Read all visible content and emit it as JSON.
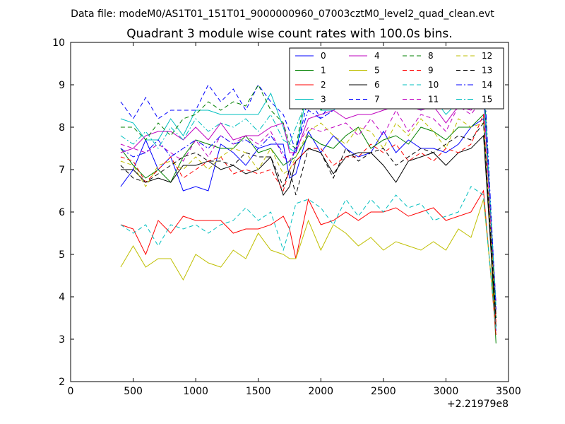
{
  "suptitle": "Data file: modeM0/AS1T01_151T01_9000000960_07003cztM0_level2_quad_clean.evt",
  "chart_data": {
    "type": "line",
    "title": "Quadrant 3 module wise count rates with 100.0s bins.",
    "xlabel": "",
    "ylabel": "",
    "x_offset_label": "+2.21979e8",
    "xlim": [
      0,
      3500
    ],
    "ylim": [
      2,
      10
    ],
    "xticks": [
      0,
      500,
      1000,
      1500,
      2000,
      2500,
      3000,
      3500
    ],
    "yticks": [
      2,
      3,
      4,
      5,
      6,
      7,
      8,
      9,
      10
    ],
    "grid": false,
    "legend_position": "top-right",
    "legend_columns": 4,
    "x": [
      400,
      500,
      600,
      700,
      800,
      900,
      1000,
      1100,
      1200,
      1300,
      1400,
      1500,
      1600,
      1700,
      1750,
      1800,
      1900,
      2000,
      2100,
      2200,
      2300,
      2400,
      2500,
      2600,
      2700,
      2800,
      2900,
      3000,
      3100,
      3200,
      3300,
      3400
    ],
    "series": [
      {
        "name": "0",
        "color": "#0000ff",
        "dash": "solid",
        "values": [
          6.6,
          7.0,
          7.7,
          7.0,
          7.3,
          6.5,
          6.6,
          6.5,
          7.6,
          7.4,
          7.1,
          7.5,
          7.6,
          7.6,
          6.8,
          6.9,
          7.9,
          7.4,
          7.8,
          7.5,
          7.3,
          7.4,
          7.9,
          7.4,
          7.7,
          7.5,
          7.5,
          7.4,
          7.6,
          8.0,
          8.2,
          3.2
        ]
      },
      {
        "name": "1",
        "color": "#008000",
        "dash": "solid",
        "values": [
          7.5,
          7.1,
          6.8,
          7.0,
          6.7,
          7.3,
          7.7,
          7.6,
          7.5,
          7.5,
          7.8,
          7.4,
          7.5,
          7.1,
          7.2,
          7.3,
          7.8,
          7.6,
          7.5,
          7.8,
          8.0,
          7.5,
          7.7,
          7.8,
          7.6,
          8.0,
          7.9,
          7.7,
          8.0,
          8.0,
          8.3,
          2.9
        ]
      },
      {
        "name": "2",
        "color": "#ff0000",
        "dash": "solid",
        "values": [
          5.7,
          5.6,
          5.0,
          5.8,
          5.5,
          5.9,
          5.8,
          5.8,
          5.8,
          5.5,
          5.6,
          5.6,
          5.7,
          5.9,
          5.6,
          4.9,
          6.3,
          5.7,
          5.8,
          6.0,
          5.8,
          6.0,
          6.0,
          6.1,
          5.9,
          6.0,
          6.1,
          5.8,
          5.9,
          6.0,
          6.5,
          3.1
        ]
      },
      {
        "name": "3",
        "color": "#00bfbf",
        "dash": "solid",
        "values": [
          8.2,
          8.1,
          7.7,
          7.7,
          8.2,
          7.8,
          8.4,
          8.4,
          8.3,
          8.3,
          8.3,
          8.3,
          8.8,
          8.0,
          7.5,
          7.4,
          9.0,
          8.4,
          8.4,
          8.6,
          8.7,
          8.6,
          8.5,
          8.7,
          8.8,
          8.4,
          8.7,
          8.3,
          8.6,
          8.7,
          9.2,
          3.5
        ]
      },
      {
        "name": "4",
        "color": "#bf00bf",
        "dash": "solid",
        "values": [
          7.4,
          7.5,
          7.8,
          7.9,
          7.9,
          7.7,
          8.0,
          7.7,
          8.1,
          7.7,
          7.8,
          7.8,
          8.0,
          8.1,
          7.4,
          7.4,
          8.2,
          8.3,
          8.4,
          8.2,
          8.3,
          8.3,
          8.4,
          8.5,
          8.5,
          8.4,
          8.5,
          8.1,
          8.5,
          8.4,
          8.8,
          3.6
        ]
      },
      {
        "name": "5",
        "color": "#bfbf00",
        "dash": "solid",
        "values": [
          4.7,
          5.2,
          4.7,
          4.9,
          4.9,
          4.4,
          5.0,
          4.8,
          4.7,
          5.1,
          4.9,
          5.5,
          5.1,
          5.0,
          4.9,
          4.9,
          5.8,
          5.1,
          5.7,
          5.5,
          5.2,
          5.4,
          5.1,
          5.3,
          5.2,
          5.1,
          5.3,
          5.1,
          5.6,
          5.4,
          6.3,
          3.3
        ]
      },
      {
        "name": "6",
        "color": "#000000",
        "dash": "solid",
        "values": [
          7.0,
          7.0,
          6.7,
          6.8,
          6.7,
          7.1,
          7.1,
          7.2,
          7.0,
          7.1,
          6.9,
          7.0,
          7.3,
          6.4,
          6.6,
          7.2,
          7.5,
          7.4,
          6.9,
          7.3,
          7.4,
          7.4,
          7.1,
          6.7,
          7.2,
          7.3,
          7.4,
          7.1,
          7.4,
          7.5,
          7.8,
          3.3
        ]
      },
      {
        "name": "7",
        "color": "#0000ff",
        "dash": "dashed",
        "values": [
          8.6,
          8.2,
          8.7,
          8.2,
          8.4,
          8.4,
          8.4,
          9.0,
          8.6,
          8.9,
          8.4,
          9.0,
          8.6,
          8.3,
          7.9,
          7.4,
          8.7,
          8.2,
          8.7,
          8.9,
          8.5,
          8.8,
          8.8,
          8.6,
          9.0,
          8.7,
          9.0,
          8.6,
          9.0,
          9.2,
          8.9,
          3.7
        ]
      },
      {
        "name": "8",
        "color": "#008000",
        "dash": "dashed",
        "values": [
          8.0,
          8.0,
          7.7,
          8.1,
          7.8,
          8.2,
          8.3,
          8.6,
          8.4,
          8.6,
          8.5,
          9.0,
          8.4,
          8.1,
          7.6,
          7.5,
          9.2,
          8.4,
          8.8,
          8.9,
          8.5,
          8.5,
          8.7,
          9.0,
          8.7,
          8.9,
          8.7,
          8.5,
          8.9,
          8.8,
          9.3,
          3.5
        ]
      },
      {
        "name": "9",
        "color": "#ff0000",
        "dash": "dashed",
        "values": [
          7.3,
          7.2,
          6.7,
          7.0,
          7.3,
          6.8,
          7.0,
          7.2,
          7.3,
          6.9,
          7.0,
          6.9,
          7.0,
          6.5,
          7.0,
          7.2,
          7.5,
          7.5,
          7.1,
          7.3,
          7.3,
          7.6,
          7.4,
          7.6,
          7.2,
          7.4,
          7.2,
          7.5,
          7.4,
          7.6,
          8.3,
          3.4
        ]
      },
      {
        "name": "10",
        "color": "#00bfbf",
        "dash": "dashed",
        "values": [
          5.7,
          5.5,
          5.7,
          5.2,
          5.7,
          5.6,
          5.7,
          5.5,
          5.7,
          5.8,
          6.1,
          5.8,
          6.0,
          5.1,
          5.6,
          6.2,
          6.3,
          6.1,
          5.7,
          6.3,
          5.9,
          6.3,
          6.0,
          6.4,
          6.1,
          6.2,
          5.8,
          5.9,
          6.0,
          6.6,
          6.4,
          3.2
        ]
      },
      {
        "name": "11",
        "color": "#bf00bf",
        "dash": "dashed",
        "values": [
          7.6,
          7.5,
          7.4,
          7.6,
          7.4,
          7.2,
          7.7,
          7.3,
          7.8,
          7.6,
          7.8,
          7.6,
          7.9,
          7.3,
          7.2,
          7.5,
          8.0,
          7.9,
          8.0,
          8.1,
          7.8,
          8.2,
          7.8,
          8.4,
          7.9,
          8.3,
          8.2,
          7.9,
          8.5,
          8.3,
          8.7,
          3.9
        ]
      },
      {
        "name": "12",
        "color": "#bfbf00",
        "dash": "dashed",
        "values": [
          7.2,
          7.1,
          6.6,
          7.1,
          7.2,
          7.0,
          7.3,
          7.0,
          7.3,
          7.5,
          7.4,
          7.0,
          7.5,
          6.9,
          7.0,
          7.3,
          7.9,
          8.1,
          7.8,
          7.6,
          8.0,
          7.9,
          7.5,
          8.1,
          7.8,
          8.2,
          7.9,
          7.5,
          8.2,
          8.0,
          8.1,
          3.6
        ]
      },
      {
        "name": "13",
        "color": "#000000",
        "dash": "dashed",
        "values": [
          7.1,
          6.8,
          6.7,
          6.9,
          7.1,
          7.3,
          7.4,
          7.2,
          7.2,
          7.1,
          7.4,
          7.3,
          7.3,
          6.6,
          7.0,
          6.4,
          7.5,
          7.4,
          6.8,
          7.5,
          7.2,
          7.4,
          7.5,
          7.1,
          7.3,
          7.5,
          7.4,
          7.6,
          7.8,
          7.7,
          8.1,
          3.5
        ]
      },
      {
        "name": "14",
        "color": "#0000ff",
        "dash": "dashdot",
        "values": [
          7.5,
          7.3,
          7.4,
          7.7,
          7.3,
          7.5,
          7.7,
          7.5,
          7.8,
          7.6,
          7.7,
          7.5,
          7.8,
          7.4,
          7.1,
          7.5,
          8.4,
          8.2,
          8.4,
          8.8,
          8.6,
          8.9,
          8.8,
          9.0,
          8.8,
          9.1,
          9.1,
          9.0,
          9.4,
          9.4,
          9.5,
          3.7
        ]
      },
      {
        "name": "15",
        "color": "#00bfbf",
        "dash": "dashdot",
        "values": [
          7.8,
          7.6,
          7.9,
          7.5,
          8.0,
          7.7,
          8.2,
          7.9,
          8.1,
          8.0,
          8.2,
          7.9,
          8.3,
          7.7,
          7.6,
          8.0,
          8.7,
          8.5,
          8.7,
          8.6,
          8.8,
          8.8,
          8.9,
          8.9,
          8.8,
          8.6,
          8.6,
          8.5,
          9.0,
          8.7,
          9.0,
          3.8
        ]
      }
    ]
  }
}
